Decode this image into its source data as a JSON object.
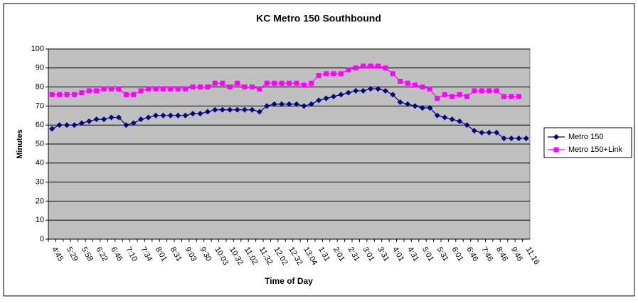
{
  "chart_data": {
    "type": "line",
    "title": "KC Metro 150 Southbound",
    "x_label": "Time of Day",
    "y_label": "Minutes",
    "categories": [
      "4:45",
      null,
      "5:29",
      null,
      "5:58",
      null,
      "6:22",
      null,
      "6:46",
      null,
      "7:10",
      null,
      "7:34",
      null,
      "8:01",
      null,
      "8:31",
      null,
      "9:03",
      null,
      "9:30",
      null,
      "10:03",
      null,
      "10:32",
      null,
      "11:02",
      null,
      "11:32",
      null,
      "12:02",
      null,
      "12:32",
      null,
      "13:04",
      null,
      "1:31",
      null,
      "2:01",
      null,
      "2:31",
      null,
      "3:01",
      null,
      "3:31",
      null,
      "4:01",
      null,
      "4:31",
      null,
      "5:01",
      null,
      "5:31",
      null,
      "6:01",
      null,
      "6:46",
      null,
      "7:46",
      null,
      "8:46",
      null,
      "9:46",
      null,
      "11:16"
    ],
    "series": [
      {
        "name": "Metro 150",
        "color": "#000080",
        "marker": "diamond",
        "values": [
          58,
          60,
          60,
          60,
          61,
          62,
          63,
          63,
          64,
          64,
          60,
          61,
          63,
          64,
          65,
          65,
          65,
          65,
          65,
          66,
          66,
          67,
          68,
          68,
          68,
          68,
          68,
          68,
          67,
          70,
          71,
          71,
          71,
          71,
          70,
          71,
          73,
          74,
          75,
          76,
          77,
          78,
          78,
          79,
          79,
          78,
          76,
          72,
          71,
          70,
          69,
          69,
          65,
          64,
          63,
          62,
          60,
          57,
          56,
          56,
          56,
          53,
          53,
          53,
          53
        ]
      },
      {
        "name": "Metro 150+Link",
        "color": "#ff00ff",
        "marker": "square",
        "values": [
          76,
          76,
          76,
          76,
          77,
          78,
          78,
          79,
          79,
          79,
          76,
          76,
          78,
          79,
          79,
          79,
          79,
          79,
          79,
          80,
          80,
          80,
          82,
          82,
          80,
          82,
          80,
          80,
          79,
          82,
          82,
          82,
          82,
          82,
          81,
          82,
          86,
          87,
          87,
          87,
          89,
          90,
          91,
          91,
          91,
          90,
          87,
          83,
          82,
          81,
          80,
          79,
          74,
          76,
          75,
          76,
          75,
          78,
          78,
          78,
          78,
          75,
          75,
          75,
          null
        ]
      }
    ],
    "ylim": [
      0,
      100
    ],
    "yticks": [
      0,
      10,
      20,
      30,
      40,
      50,
      60,
      70,
      80,
      90,
      100
    ],
    "grid": true,
    "legend": "right"
  }
}
